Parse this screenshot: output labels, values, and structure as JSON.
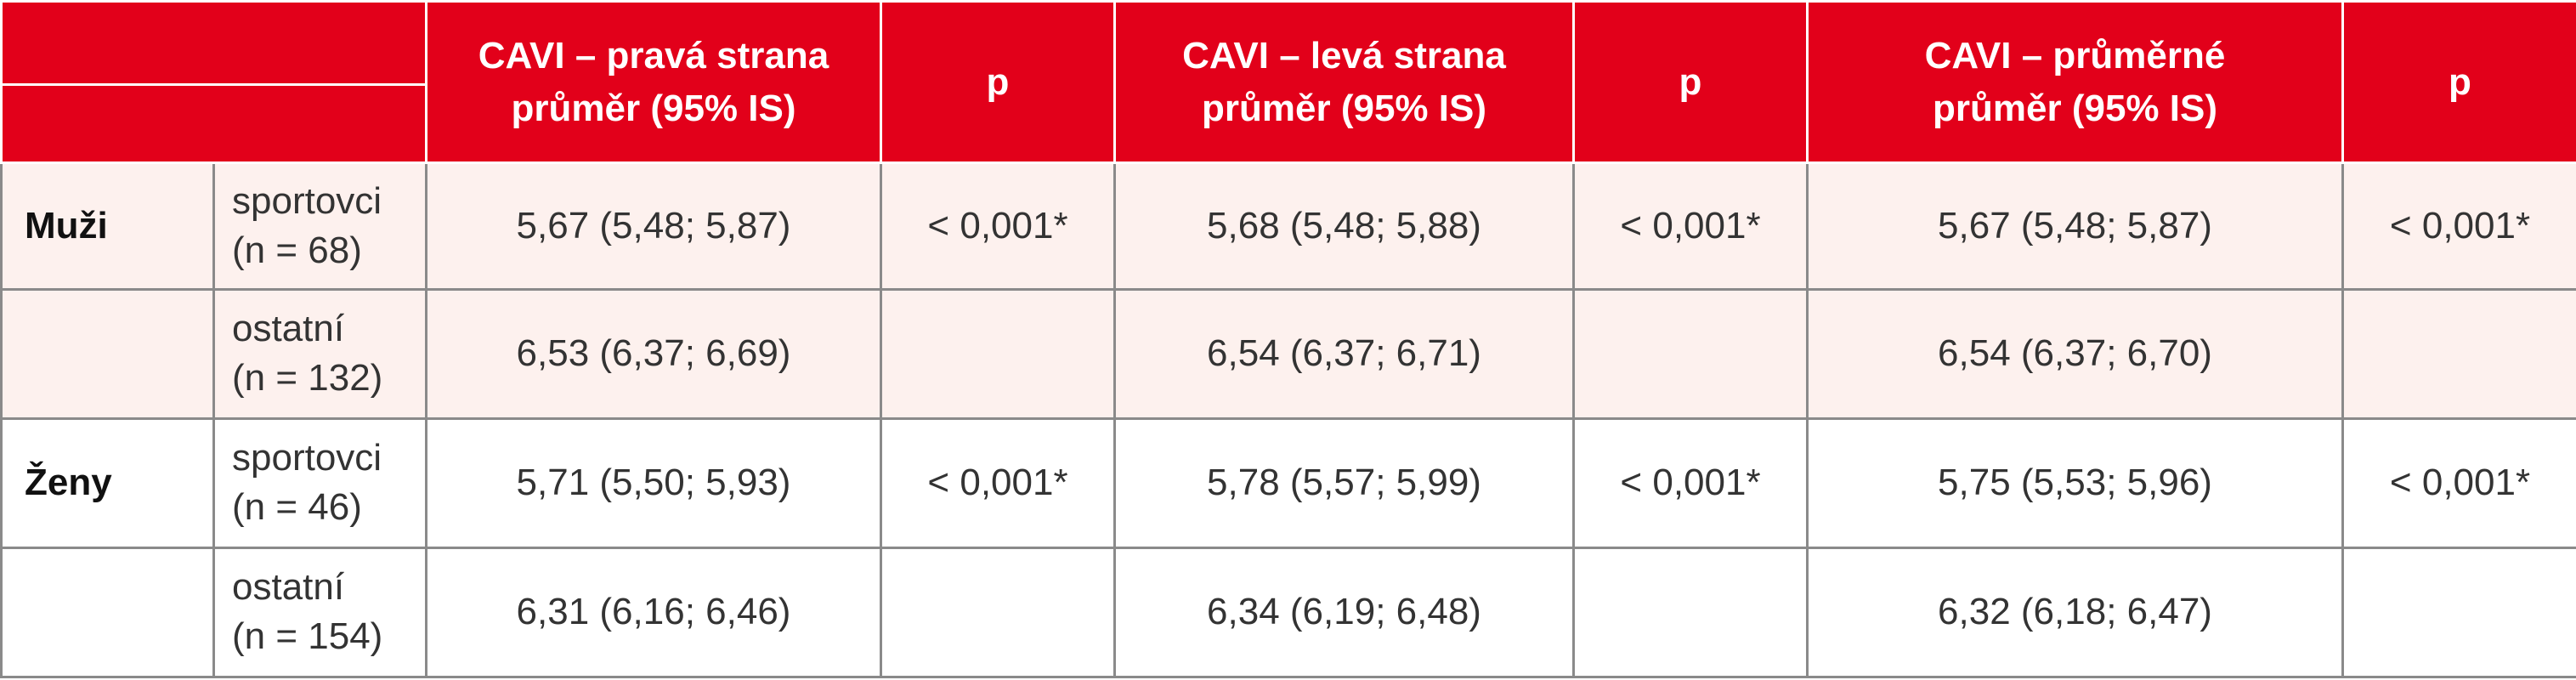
{
  "header": {
    "cols": [
      {
        "line1": "CAVI – pravá strana",
        "line2": "průměr (95% IS)"
      },
      {
        "line1": "p"
      },
      {
        "line1": "CAVI – levá strana",
        "line2": "průměr (95% IS)"
      },
      {
        "line1": "p"
      },
      {
        "line1": "CAVI – průměrné",
        "line2": "průměr (95% IS)"
      },
      {
        "line1": "p"
      }
    ]
  },
  "rows": [
    {
      "group": "Muži",
      "sub1": "sportovci",
      "sub2": "(n = 68)",
      "cells": [
        "5,67 (5,48; 5,87)",
        "< 0,001*",
        "5,68 (5,48; 5,88)",
        "< 0,001*",
        "5,67 (5,48; 5,87)",
        "< 0,001*"
      ]
    },
    {
      "group": "",
      "sub1": "ostatní",
      "sub2": "(n = 132)",
      "cells": [
        "6,53 (6,37; 6,69)",
        "",
        "6,54 (6,37; 6,71)",
        "",
        "6,54 (6,37; 6,70)",
        ""
      ]
    },
    {
      "group": "Ženy",
      "sub1": "sportovci",
      "sub2": "(n = 46)",
      "cells": [
        "5,71 (5,50; 5,93)",
        "< 0,001*",
        "5,78 (5,57; 5,99)",
        "< 0,001*",
        "5,75 (5,53; 5,96)",
        "< 0,001*"
      ]
    },
    {
      "group": "",
      "sub1": "ostatní",
      "sub2": "(n = 154)",
      "cells": [
        "6,31 (6,16; 6,46)",
        "",
        "6,34 (6,19; 6,48)",
        "",
        "6,32 (6,18; 6,47)",
        ""
      ]
    }
  ]
}
